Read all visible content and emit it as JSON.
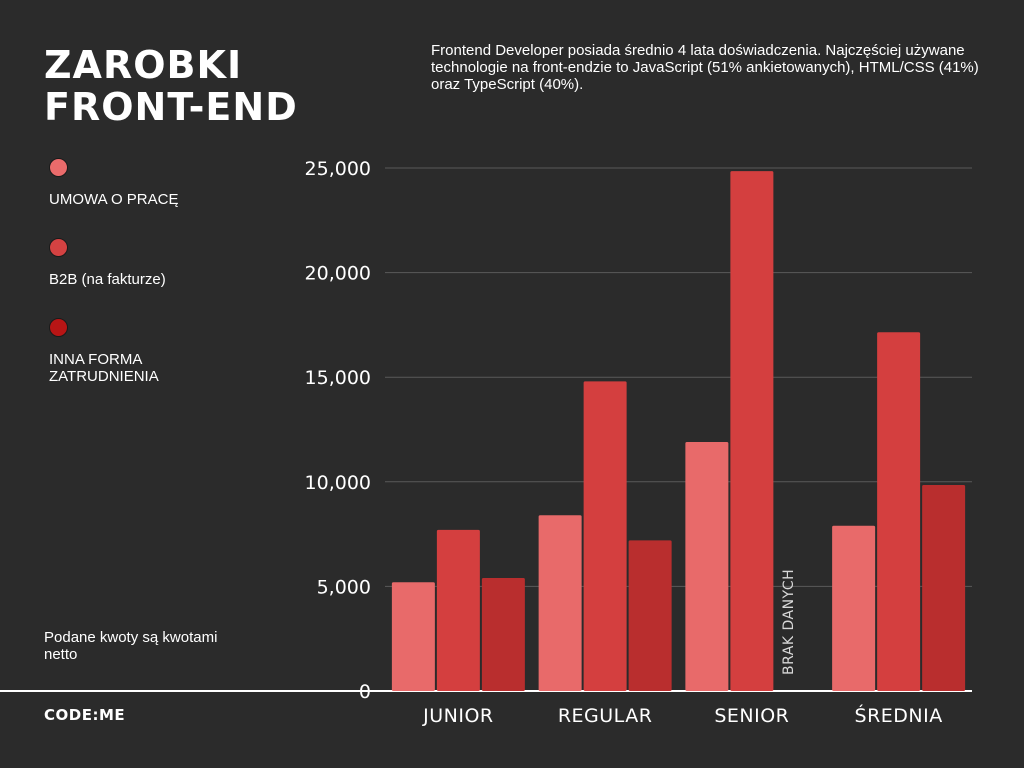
{
  "header": {
    "title_line1": "ZAROBKI",
    "title_line2": "FRONT-END",
    "intro": "Frontend Developer posiada średnio 4 lata doświadczenia. Najczęściej używane technologie na front-endzie to JavaScript (51% ankietowanych), HTML/CSS (41%) oraz TypeScript (40%)."
  },
  "legend": [
    {
      "label": "UMOWA O PRACĘ",
      "color": "#ea6b6b"
    },
    {
      "label": "B2B (na fakturze)",
      "color": "#d44242"
    },
    {
      "label": "INNA FORMA ZATRUDNIENIA",
      "color": "#b81515"
    }
  ],
  "note": "Podane kwoty są kwotami netto",
  "brand": "CODE:ME",
  "chart_data": {
    "type": "bar",
    "title": "",
    "xlabel": "",
    "ylabel": "",
    "categories": [
      "JUNIOR",
      "REGULAR",
      "SENIOR",
      "ŚREDNIA"
    ],
    "series": [
      {
        "name": "UMOWA O PRACĘ",
        "color": "#e86a6a",
        "values": [
          5200,
          8400,
          11900,
          7900
        ]
      },
      {
        "name": "B2B (na fakturze)",
        "color": "#d43f3f",
        "values": [
          7700,
          14800,
          24850,
          17150
        ]
      },
      {
        "name": "INNA FORMA ZATRUDNIENIA",
        "color": "#b92e2e",
        "values": [
          5400,
          7200,
          null,
          9850
        ]
      }
    ],
    "ylim": [
      0,
      25000
    ],
    "yticks": [
      0,
      5000,
      10000,
      15000,
      20000,
      25000
    ],
    "ytick_labels": [
      "0",
      "5,000",
      "10,000",
      "15,000",
      "20,000",
      "25,000"
    ],
    "grid": true,
    "legend_position": "left",
    "annotations": [
      {
        "category": "SENIOR",
        "series": "INNA FORMA ZATRUDNIENIA",
        "text": "BRAK DANYCH"
      }
    ]
  }
}
